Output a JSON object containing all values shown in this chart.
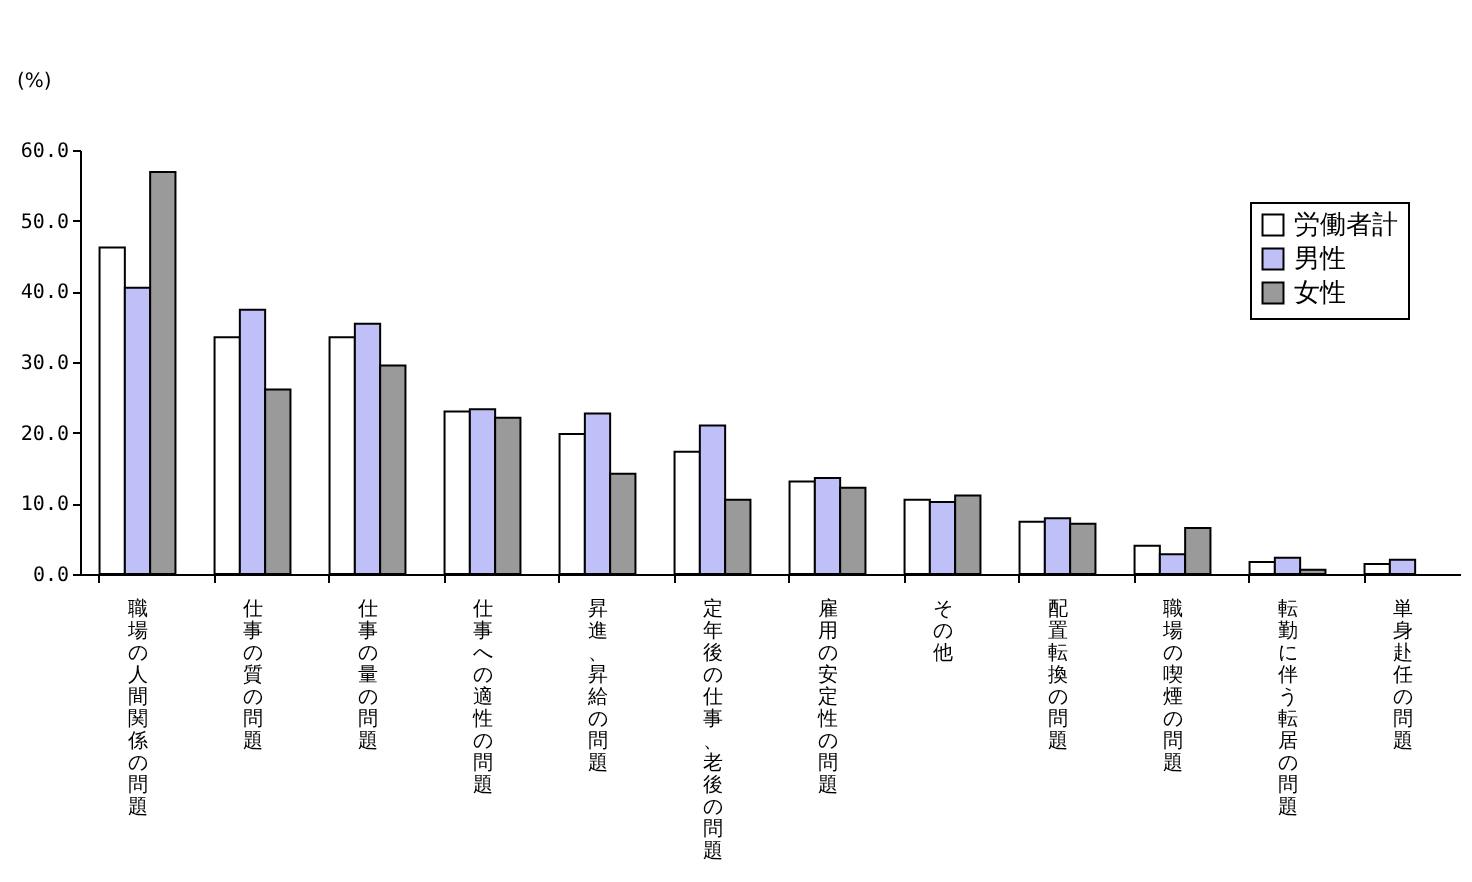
{
  "chart_data": {
    "type": "bar",
    "ylabel": "(%)",
    "categories": [
      "職場の人間関係の問題",
      "仕事の質の問題",
      "仕事の量の問題",
      "仕事への適性の問題",
      "昇進、昇給の問題",
      "定年後の仕事、老後の問題",
      "雇用の安定性の問題",
      "その他",
      "配置転換の問題",
      "職場の喫煙の問題",
      "転勤に伴う転居の問題",
      "単身赴任の問題"
    ],
    "series": [
      {
        "name": "労働者計",
        "color": "#ffffff",
        "values": [
          46.2,
          33.5,
          33.5,
          23.0,
          19.8,
          17.3,
          13.1,
          10.5,
          7.4,
          4.0,
          1.7,
          1.4
        ]
      },
      {
        "name": "男性",
        "color": "#c0c0f8",
        "values": [
          40.5,
          37.4,
          35.4,
          23.3,
          22.7,
          21.0,
          13.6,
          10.2,
          7.9,
          2.8,
          2.3,
          2.0
        ]
      },
      {
        "name": "女性",
        "color": "#9a9a9a",
        "values": [
          56.9,
          26.1,
          29.5,
          22.1,
          14.2,
          10.5,
          12.2,
          11.1,
          7.1,
          6.5,
          0.6,
          null
        ]
      }
    ],
    "ylim": [
      0,
      60
    ],
    "yticks": [
      {
        "value": 0,
        "label": "0.0"
      },
      {
        "value": 10,
        "label": "10.0"
      },
      {
        "value": 20,
        "label": "20.0"
      },
      {
        "value": 30,
        "label": "30.0"
      },
      {
        "value": 40,
        "label": "40.0"
      },
      {
        "value": 50,
        "label": "50.0"
      },
      {
        "value": 60,
        "label": "60.0"
      }
    ],
    "grid": false,
    "legend": "top right"
  }
}
